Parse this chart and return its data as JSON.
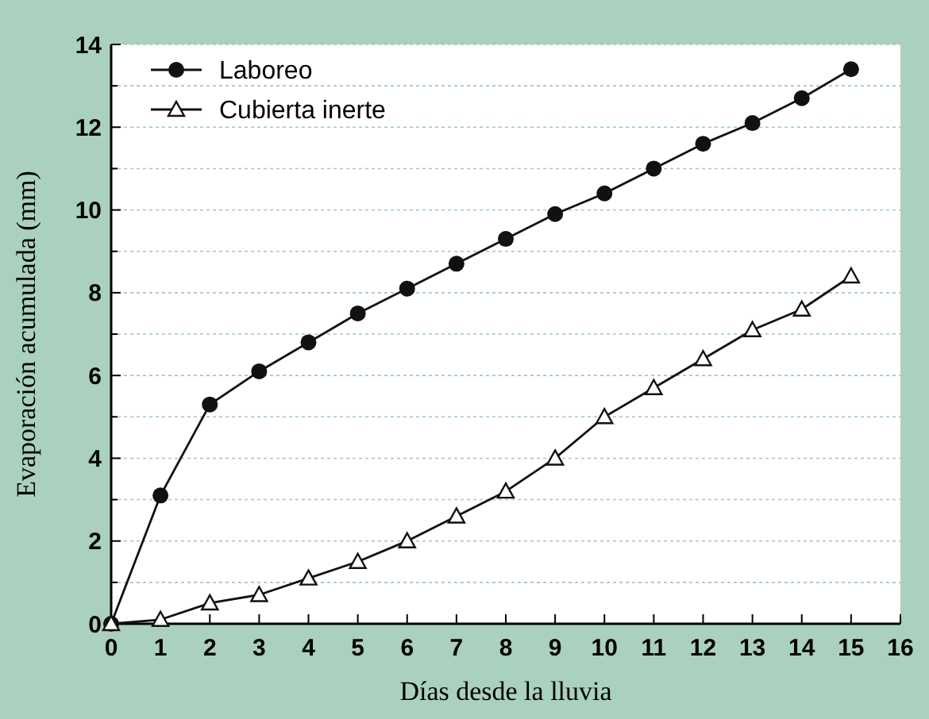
{
  "chart_data": {
    "type": "line",
    "xlabel": "Días desde la lluvia",
    "ylabel": "Evaporación acumulada (mm)",
    "x": [
      0,
      1,
      2,
      3,
      4,
      5,
      6,
      7,
      8,
      9,
      10,
      11,
      12,
      13,
      14,
      15
    ],
    "series": [
      {
        "name": "Laboreo",
        "color": "#111111",
        "marker": "circle",
        "values": [
          0,
          3.1,
          5.3,
          6.1,
          6.8,
          7.5,
          8.1,
          8.7,
          9.3,
          9.9,
          10.4,
          11.0,
          11.6,
          12.1,
          12.7,
          13.4
        ]
      },
      {
        "name": "Cubierta inerte",
        "color": "#111111",
        "marker": "triangle",
        "values": [
          0,
          0.1,
          0.5,
          0.7,
          1.1,
          1.5,
          2.0,
          2.6,
          3.2,
          4.0,
          5.0,
          5.7,
          6.4,
          7.1,
          7.6,
          8.4
        ]
      }
    ],
    "xlim": [
      0,
      16
    ],
    "xticks": [
      0,
      1,
      2,
      3,
      4,
      5,
      6,
      7,
      8,
      9,
      10,
      11,
      12,
      13,
      14,
      15,
      16
    ],
    "ylim": [
      0,
      14
    ],
    "yticks": [
      0,
      {
        "value": 1,
        "label": null
      },
      2,
      {
        "value": 3,
        "label": null
      },
      4,
      {
        "value": 5,
        "label": null
      },
      6,
      {
        "value": 7,
        "label": null
      },
      8,
      {
        "value": 9,
        "label": null
      },
      10,
      {
        "value": 11,
        "label": null
      },
      12,
      {
        "value": 13,
        "label": null
      },
      14
    ],
    "grid": "y",
    "legend": "top left"
  }
}
